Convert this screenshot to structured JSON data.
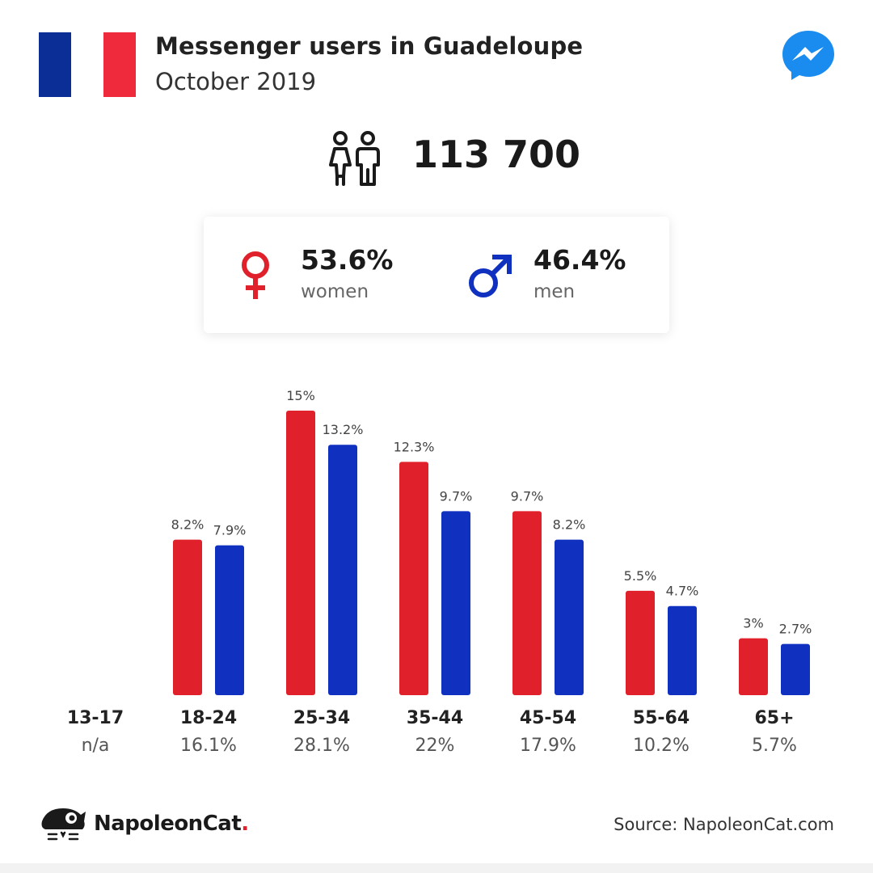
{
  "header": {
    "title": "Messenger users in Guadeloupe",
    "subtitle": "October 2019",
    "flag_colors": {
      "blue": "#0a2e96",
      "red": "#ef2a3c"
    },
    "logo_icon": "messenger-logo-icon"
  },
  "total": {
    "value": "113 700",
    "icon": "people-icon"
  },
  "gender": {
    "women": {
      "pct": "53.6%",
      "label": "women",
      "icon": "female-icon",
      "color": "#e0202a"
    },
    "men": {
      "pct": "46.4%",
      "label": "men",
      "icon": "male-icon",
      "color": "#1030c0"
    }
  },
  "chart_data": {
    "type": "bar",
    "categories": [
      "13-17",
      "18-24",
      "25-34",
      "35-44",
      "45-54",
      "55-64",
      "65+"
    ],
    "category_totals": [
      "n/a",
      "16.1%",
      "28.1%",
      "22%",
      "17.9%",
      "10.2%",
      "5.7%"
    ],
    "series": [
      {
        "values": [
          null,
          8.2,
          15,
          12.3,
          9.7,
          5.5,
          3
        ],
        "labels": [
          "",
          "8.2%",
          "15%",
          "12.3%",
          "9.7%",
          "5.5%",
          "3%"
        ],
        "color": "#e0202a"
      },
      {
        "values": [
          null,
          7.9,
          13.2,
          9.7,
          8.2,
          4.7,
          2.7
        ],
        "labels": [
          "",
          "7.9%",
          "13.2%",
          "9.7%",
          "8.2%",
          "4.7%",
          "2.7%"
        ],
        "color": "#1030c0"
      }
    ],
    "ylim": [
      0,
      15
    ],
    "grid": false,
    "legend": "none"
  },
  "footer": {
    "brand": "NapoleonCat",
    "brand_dot": ".",
    "source": "Source: NapoleonCat.com",
    "logo_icon": "napoleoncat-logo-icon"
  }
}
